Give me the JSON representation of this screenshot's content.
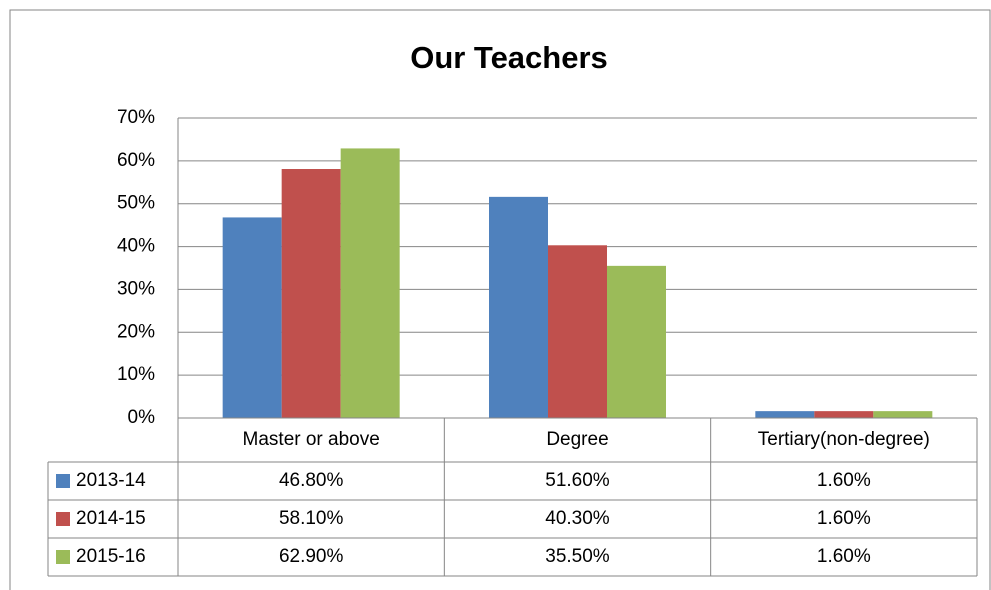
{
  "chart_data": {
    "type": "bar",
    "title": "Our Teachers",
    "categories": [
      "Master or above",
      "Degree",
      "Tertiary(non-degree)"
    ],
    "series": [
      {
        "name": "2013-14",
        "color": "#4f81bd",
        "values": [
          46.8,
          51.6,
          1.6
        ],
        "value_labels": [
          "46.80%",
          "51.60%",
          "1.60%"
        ]
      },
      {
        "name": "2014-15",
        "color": "#c0504d",
        "values": [
          58.1,
          40.3,
          1.6
        ],
        "value_labels": [
          "58.10%",
          "40.30%",
          "1.60%"
        ]
      },
      {
        "name": "2015-16",
        "color": "#9bbb59",
        "values": [
          62.9,
          35.5,
          1.6
        ],
        "value_labels": [
          "62.90%",
          "35.50%",
          "1.60%"
        ]
      }
    ],
    "ylim": [
      0,
      70
    ],
    "yticks": [
      {
        "value": 0,
        "label": "0%"
      },
      {
        "value": 10,
        "label": "10%"
      },
      {
        "value": 20,
        "label": "20%"
      },
      {
        "value": 30,
        "label": "30%"
      },
      {
        "value": 40,
        "label": "40%"
      },
      {
        "value": 50,
        "label": "50%"
      },
      {
        "value": 60,
        "label": "60%"
      },
      {
        "value": 70,
        "label": "70%"
      }
    ],
    "grid": true
  }
}
